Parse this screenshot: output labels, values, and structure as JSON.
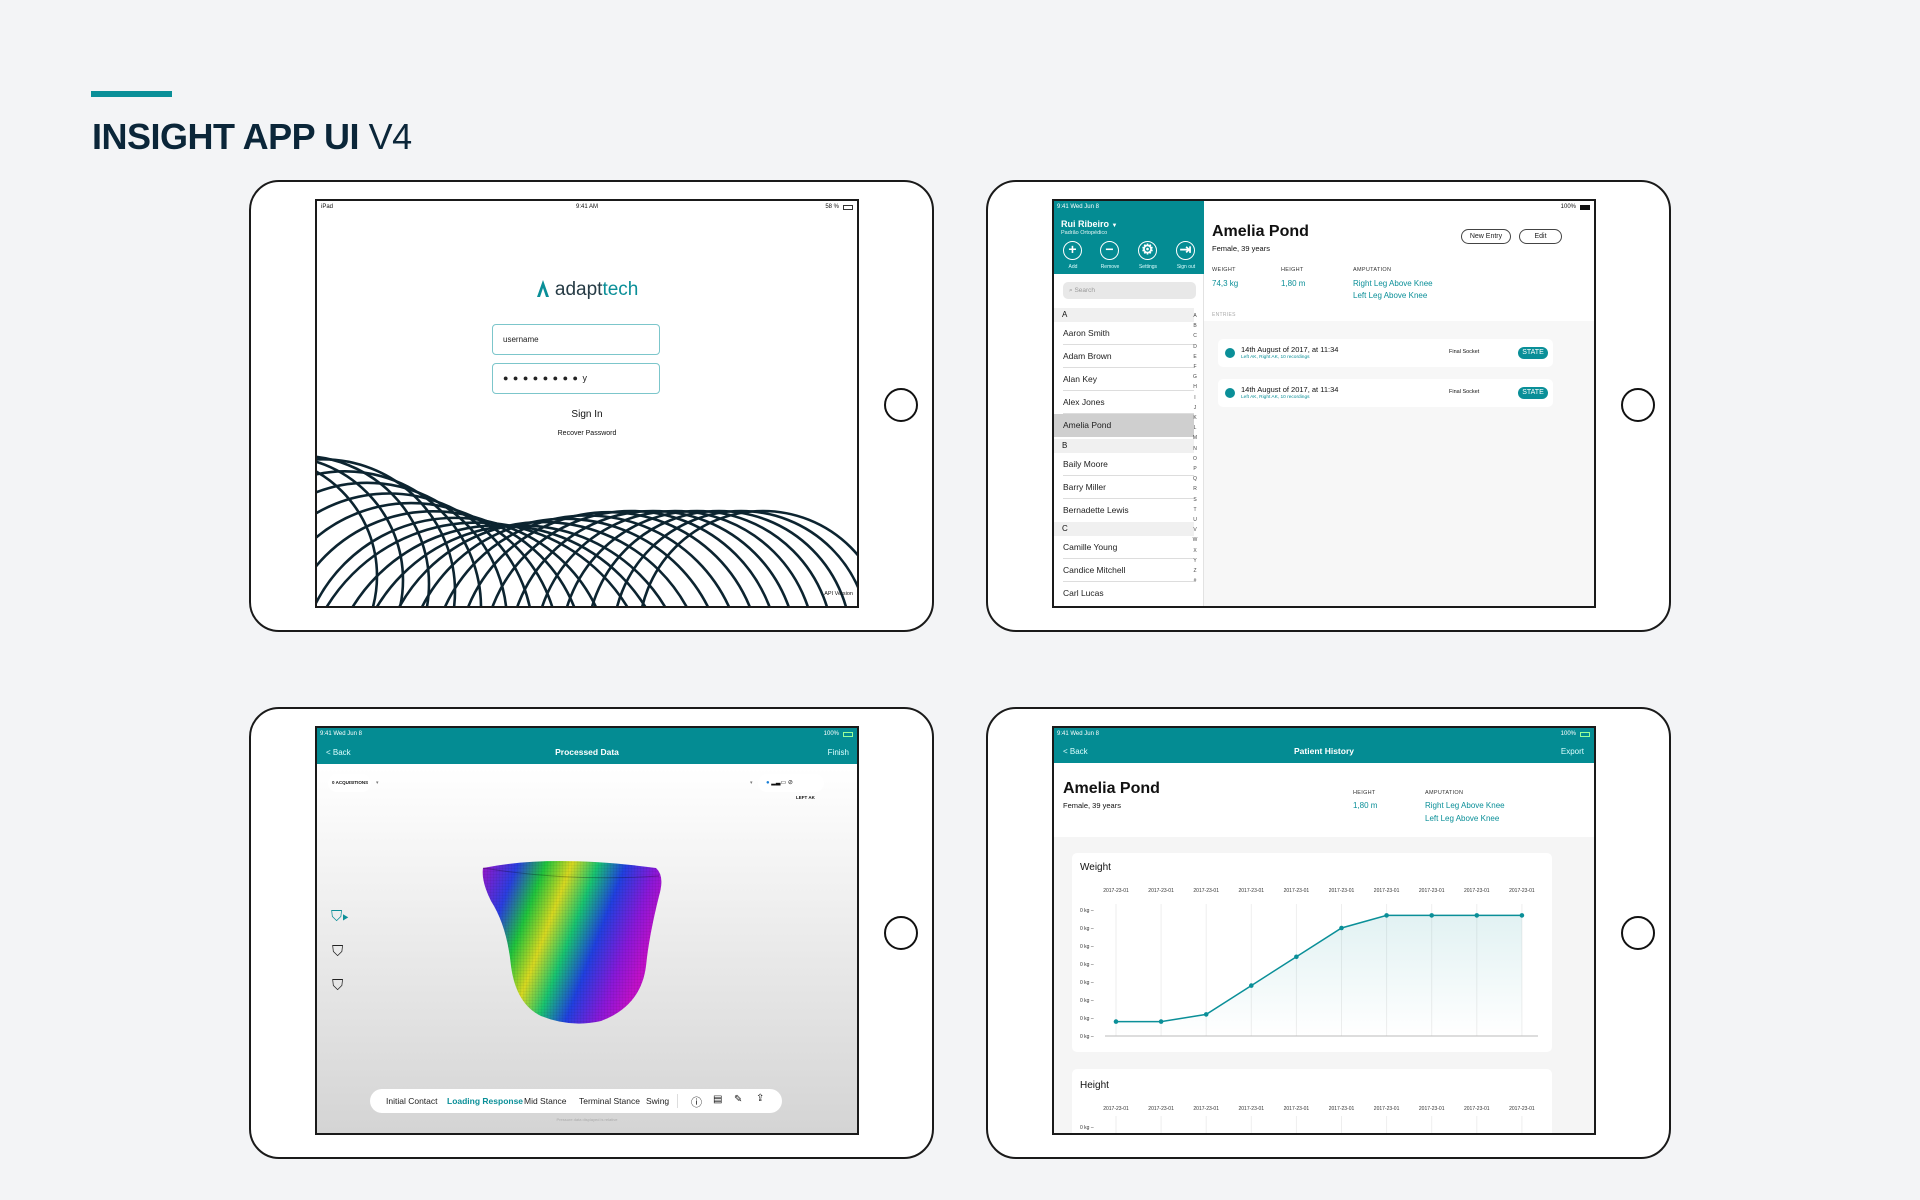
{
  "page": {
    "title_bold": "INSIGHT APP UI",
    "title_light": "V4",
    "accent_color": "#0a8f98"
  },
  "login": {
    "status": {
      "left": "iPad",
      "time": "9:41 AM",
      "battery": "58 %"
    },
    "logo_text_dark": "adapt",
    "logo_text_teal": "tech",
    "username_value": "username",
    "password_value": "● ● ● ● ● ● ● ●  y",
    "sign_in": "Sign In",
    "recover": "Recover Password",
    "api_version": "API Version"
  },
  "patients": {
    "status": {
      "time": "9:41  Wed Jun 8",
      "battery": "100%"
    },
    "user_name": "Rui Ribeiro",
    "user_org": "Padrão Ortopédico",
    "actions": [
      {
        "label": "Add",
        "icon": "plus-circle-icon",
        "glyph": "+"
      },
      {
        "label": "Remove",
        "icon": "minus-circle-icon",
        "glyph": "−"
      },
      {
        "label": "Settings",
        "icon": "gear-icon",
        "glyph": "⚙"
      },
      {
        "label": "Sign out",
        "icon": "sign-out-icon",
        "glyph": "⇥"
      }
    ],
    "search_placeholder": "Search",
    "sections": [
      {
        "letter": "A",
        "names": [
          "Aaron Smith",
          "Adam Brown",
          "Alan Key",
          "Alex Jones",
          "Amelia Pond"
        ]
      },
      {
        "letter": "B",
        "names": [
          "Baily Moore",
          "Barry Miller",
          "Bernadette Lewis"
        ]
      },
      {
        "letter": "C",
        "names": [
          "Camille Young",
          "Candice Mitchell",
          "Carl Lucas"
        ]
      }
    ],
    "selected": "Amelia Pond",
    "index_letters": [
      "A",
      "B",
      "C",
      "D",
      "E",
      "F",
      "G",
      "H",
      "I",
      "J",
      "K",
      "L",
      "M",
      "N",
      "O",
      "P",
      "Q",
      "R",
      "S",
      "T",
      "U",
      "V",
      "W",
      "X",
      "Y",
      "Z",
      "#"
    ],
    "detail": {
      "name": "Amelia Pond",
      "subtitle": "Female, 39 years",
      "new_entry": "New Entry",
      "edit": "Edit",
      "weight_label": "WEIGHT",
      "weight_value": "74,3 kg",
      "height_label": "HEIGHT",
      "height_value": "1,80 m",
      "amputation_label": "AMPUTATION",
      "amputation_values": [
        "Right Leg Above Knee",
        "Left Leg Above Knee"
      ],
      "entries_label": "ENTRIES",
      "entries": [
        {
          "title": "14th August of 2017, at 11:34",
          "sub": "Left AK, Right AK, 10 recordings",
          "type": "Final Socket",
          "badge": "STATE"
        },
        {
          "title": "14th August of 2017, at 11:34",
          "sub": "Left AK, Right AK, 10 recordings",
          "type": "Final Socket",
          "badge": "STATE"
        }
      ]
    }
  },
  "processed": {
    "status": {
      "time": "9:41  Wed Jun 8",
      "battery": "100%"
    },
    "back": "< Back",
    "title": "Processed Data",
    "finish": "Finish",
    "acquisitions": "0 ACQUISITIONS",
    "side_label": "LEFT AK",
    "phases": [
      "Initial Contact",
      "Loading Response",
      "Mid Stance",
      "Terminal Stance",
      "Swing"
    ],
    "active_phase": "Loading Response",
    "footnote": "Pressure data displayed is relative"
  },
  "history": {
    "status": {
      "time": "9:41  Wed Jun 8",
      "battery": "100%"
    },
    "back": "< Back",
    "title": "Patient History",
    "export": "Export",
    "name": "Amelia Pond",
    "subtitle": "Female, 39 years",
    "height_label": "HEIGHT",
    "height_value": "1,80 m",
    "amputation_label": "AMPUTATION",
    "amputation_values": [
      "Right Leg Above Knee",
      "Left Leg Above Knee"
    ],
    "height_card_title": "Height",
    "height_card_dates": [
      "2017-23-01",
      "2017-23-01",
      "2017-23-01",
      "2017-23-01",
      "2017-23-01",
      "2017-23-01",
      "2017-23-01",
      "2017-23-01",
      "2017-23-01",
      "2017-23-01"
    ],
    "height_card_tick": "0 kg –"
  },
  "chart_data": {
    "type": "area",
    "title": "Weight",
    "categories": [
      "2017-23-01",
      "2017-23-01",
      "2017-23-01",
      "2017-23-01",
      "2017-23-01",
      "2017-23-01",
      "2017-23-01",
      "2017-23-01",
      "2017-23-01",
      "2017-23-01"
    ],
    "y_tick_labels": [
      "0 kg –",
      "0 kg –",
      "0 kg –",
      "0 kg –",
      "0 kg –",
      "0 kg –",
      "0 kg –",
      "0 kg –"
    ],
    "values": [
      0.8,
      0.8,
      1.2,
      2.8,
      4.4,
      6.0,
      6.7,
      6.7,
      6.7,
      6.7
    ],
    "ylim": [
      0,
      7
    ],
    "grid": "vertical",
    "color": "#0a8f98"
  }
}
